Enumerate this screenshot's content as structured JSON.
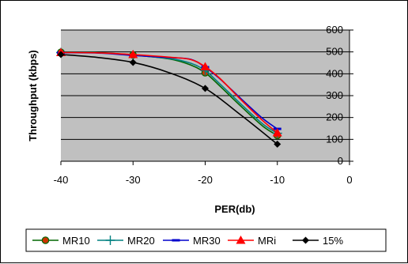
{
  "chart_data": {
    "type": "line",
    "xlabel": "PER(db)",
    "ylabel": "Throughput (kbps)",
    "xlim": [
      -40,
      0
    ],
    "ylim": [
      0,
      600
    ],
    "xticks": [
      -40,
      -30,
      -20,
      -10,
      0
    ],
    "yticks": [
      0,
      100,
      200,
      300,
      400,
      500,
      600
    ],
    "grid": "horizontal",
    "plot_background": "#c0c0c0",
    "legend_position": "bottom",
    "series": [
      {
        "name": "MR10",
        "color": "#006600",
        "marker": "circle",
        "marker_color": "#cc3300",
        "markers_x": [
          -40,
          -30,
          -20,
          -10
        ],
        "x": [
          -40,
          -35,
          -30,
          -25,
          -22,
          -20,
          -18,
          -15,
          -12,
          -10
        ],
        "y": [
          498,
          497,
          486,
          468,
          440,
          405,
          345,
          250,
          160,
          118
        ]
      },
      {
        "name": "MR20",
        "color": "#008080",
        "marker": "plus",
        "marker_color": "#008080",
        "markers_x": [
          -40,
          -30,
          -20,
          -10
        ],
        "x": [
          -40,
          -35,
          -30,
          -25,
          -22,
          -20,
          -18,
          -15,
          -12,
          -10
        ],
        "y": [
          497,
          496,
          485,
          470,
          448,
          415,
          355,
          260,
          170,
          128
        ]
      },
      {
        "name": "MR30",
        "color": "#0000cc",
        "marker": "dash",
        "marker_color": "#0000cc",
        "markers_x": [
          -40,
          -30,
          -20,
          -10
        ],
        "x": [
          -40,
          -35,
          -30,
          -25,
          -22,
          -20,
          -18,
          -15,
          -12,
          -10
        ],
        "y": [
          496,
          495,
          484,
          474,
          466,
          430,
          378,
          285,
          195,
          148
        ]
      },
      {
        "name": "MRi",
        "color": "#ff0000",
        "marker": "triangle",
        "marker_color": "#ff0000",
        "markers_x": [
          -40,
          -30,
          -20,
          -10
        ],
        "x": [
          -40,
          -35,
          -30,
          -25,
          -22,
          -20,
          -18,
          -15,
          -12,
          -10
        ],
        "y": [
          497,
          496,
          488,
          476,
          465,
          432,
          380,
          280,
          185,
          130
        ]
      },
      {
        "name": "15%",
        "color": "#000000",
        "marker": "diamond",
        "marker_color": "#000000",
        "markers_x": [
          -40,
          -30,
          -20,
          -10
        ],
        "x": [
          -40,
          -35,
          -30,
          -25,
          -20,
          -15,
          -10
        ],
        "y": [
          488,
          475,
          452,
          405,
          333,
          210,
          78
        ]
      }
    ]
  }
}
